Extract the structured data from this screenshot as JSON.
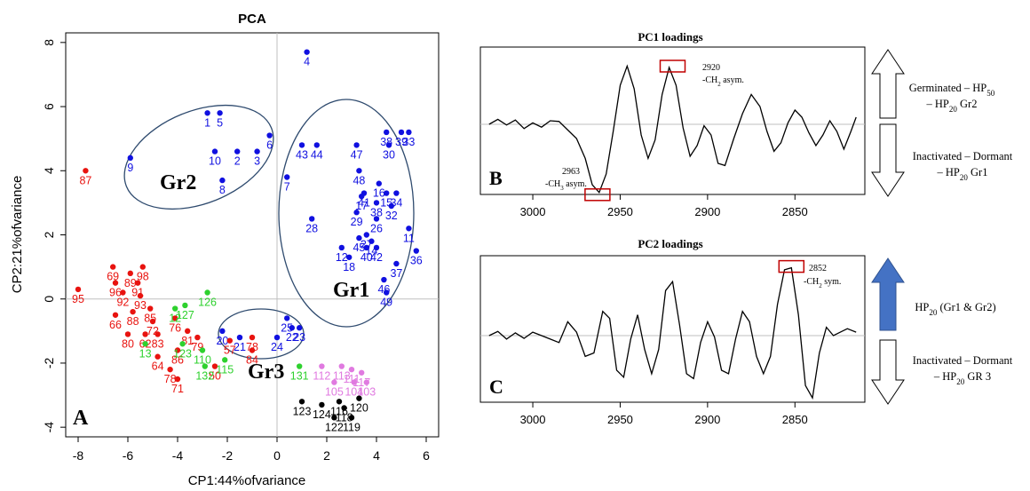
{
  "colors": {
    "red": "#e8130f",
    "blue": "#1010e0",
    "green": "#2ed12e",
    "pink": "#e07ae0",
    "black": "#000000",
    "ellipse": "#2e4a6e",
    "baseline": "#bfbfbf",
    "marker": "#c00000",
    "arrow_fill": "#4472c4"
  },
  "icons": {
    "up_filled": "arrow-up-filled-icon",
    "up_outline": "arrow-up-outline-icon",
    "down_outline": "arrow-down-outline-icon"
  },
  "pca": {
    "title": "PCA",
    "xlabel": "CP1:\u001544%\u0015of\u0015variance",
    "ylabel": "CP2:\u001521%\u0015of\u0015variance",
    "panel_letter": "A",
    "xticks": [
      "-8",
      "-6",
      "-4",
      "-2",
      "0",
      "2",
      "4",
      "6"
    ],
    "yticks": [
      "-4",
      "-2",
      "0",
      "2",
      "4",
      "6",
      "8"
    ],
    "groups": [
      "Gr1",
      "Gr2",
      "Gr3"
    ]
  },
  "pc1": {
    "title": "PC1 loadings",
    "panel_letter": "B",
    "xticks": [
      "3000",
      "2950",
      "2900",
      "2850"
    ],
    "ann1_wn": "2920",
    "ann1_lbl": "-CH",
    "ann1_sub": "2",
    "ann1_end": " asym.",
    "ann2_wn": "2963",
    "ann2_lbl": "-CH",
    "ann2_sub": "3",
    "ann2_end": " asym.",
    "top_line1": "Germinated – HP",
    "top_sub1": "50",
    "top_line2": "– HP",
    "top_sub2": "20",
    "top_end2": " Gr2",
    "bottom_line1": "Inactivated – Dormant",
    "bottom_line2": "– HP",
    "bottom_sub2": "20",
    "bottom_end2": " Gr1"
  },
  "pc2": {
    "title": "PC2 loadings",
    "panel_letter": "C",
    "xticks": [
      "3000",
      "2950",
      "2900",
      "2850"
    ],
    "ann1_wn": "2852",
    "ann1_lbl": "-CH",
    "ann1_sub": "2",
    "ann1_end": " sym.",
    "top_line1": "HP",
    "top_sub1": "20",
    "top_end1": " (Gr1 & Gr2)",
    "bottom_line1": "Inactivated – Dormant",
    "bottom_line2": "– HP",
    "bottom_sub2": "20",
    "bottom_end2": " GR 3"
  },
  "chart_data": [
    {
      "type": "scatter",
      "title": "PCA",
      "xlabel": "CP1:\u001544%\u0015of\u0015variance",
      "ylabel": "CP2:\u001521%\u0015of\u0015variance",
      "xlim": [
        -8.5,
        6.5
      ],
      "ylim": [
        -4.3,
        8.3
      ],
      "grid": false,
      "series": [
        {
          "color": "blue",
          "points": [
            {
              "x": 1.2,
              "y": 7.7,
              "label": "4"
            },
            {
              "x": -2.8,
              "y": 5.8,
              "label": "1"
            },
            {
              "x": -2.3,
              "y": 5.8,
              "label": "5"
            },
            {
              "x": -0.3,
              "y": 5.1,
              "label": "6"
            },
            {
              "x": -0.8,
              "y": 4.6,
              "label": "3"
            },
            {
              "x": -1.6,
              "y": 4.6,
              "label": "2"
            },
            {
              "x": -2.5,
              "y": 4.6,
              "label": "10"
            },
            {
              "x": -5.9,
              "y": 4.4,
              "label": "9"
            },
            {
              "x": -2.2,
              "y": 3.7,
              "label": "8"
            },
            {
              "x": 1.0,
              "y": 4.8,
              "label": "43"
            },
            {
              "x": 1.6,
              "y": 4.8,
              "label": "44"
            },
            {
              "x": 4.4,
              "y": 5.2,
              "label": "38"
            },
            {
              "x": 5.0,
              "y": 5.2,
              "label": "39"
            },
            {
              "x": 5.3,
              "y": 5.2,
              "label": "33"
            },
            {
              "x": 4.5,
              "y": 4.8,
              "label": "30"
            },
            {
              "x": 3.2,
              "y": 4.8,
              "label": "47"
            },
            {
              "x": 3.3,
              "y": 4.0,
              "label": "48"
            },
            {
              "x": 4.1,
              "y": 3.6,
              "label": "16"
            },
            {
              "x": 4.4,
              "y": 3.3,
              "label": "15"
            },
            {
              "x": 4.8,
              "y": 3.3,
              "label": "34"
            },
            {
              "x": 3.5,
              "y": 3.3,
              "label": "41"
            },
            {
              "x": 3.4,
              "y": 3.2,
              "label": "17"
            },
            {
              "x": 4.0,
              "y": 3.0,
              "label": "38"
            },
            {
              "x": 4.6,
              "y": 2.9,
              "label": "32"
            },
            {
              "x": 3.2,
              "y": 2.7,
              "label": "29"
            },
            {
              "x": 4.0,
              "y": 2.5,
              "label": "26"
            },
            {
              "x": 0.4,
              "y": 3.8,
              "label": "7"
            },
            {
              "x": 1.4,
              "y": 2.5,
              "label": "28"
            },
            {
              "x": 3.6,
              "y": 2.0,
              "label": "27"
            },
            {
              "x": 3.3,
              "y": 1.9,
              "label": "45"
            },
            {
              "x": 3.8,
              "y": 1.8,
              "label": "14"
            },
            {
              "x": 3.6,
              "y": 1.6,
              "label": "40"
            },
            {
              "x": 4.0,
              "y": 1.6,
              "label": "42"
            },
            {
              "x": 5.3,
              "y": 2.2,
              "label": "11"
            },
            {
              "x": 2.6,
              "y": 1.6,
              "label": "12"
            },
            {
              "x": 2.9,
              "y": 1.3,
              "label": "18"
            },
            {
              "x": 5.6,
              "y": 1.5,
              "label": "36"
            },
            {
              "x": 4.8,
              "y": 1.1,
              "label": "37"
            },
            {
              "x": 4.3,
              "y": 0.6,
              "label": "46"
            },
            {
              "x": 4.4,
              "y": 0.2,
              "label": "49"
            },
            {
              "x": 0.4,
              "y": -0.6,
              "label": "25"
            },
            {
              "x": 0.6,
              "y": -0.9,
              "label": "22"
            },
            {
              "x": 0.9,
              "y": -0.9,
              "label": "23"
            },
            {
              "x": 0.0,
              "y": -1.2,
              "label": "24"
            },
            {
              "x": -1.5,
              "y": -1.2,
              "label": "21"
            },
            {
              "x": -2.2,
              "y": -1.0,
              "label": "20"
            }
          ]
        },
        {
          "color": "red",
          "points": [
            {
              "x": -7.7,
              "y": 4.0,
              "label": "87"
            },
            {
              "x": -8.0,
              "y": 0.3,
              "label": "95"
            },
            {
              "x": -6.6,
              "y": 1.0,
              "label": "69"
            },
            {
              "x": -6.5,
              "y": 0.5,
              "label": "96"
            },
            {
              "x": -5.9,
              "y": 0.8,
              "label": "89"
            },
            {
              "x": -5.6,
              "y": 0.5,
              "label": "91"
            },
            {
              "x": -5.4,
              "y": 1.0,
              "label": "98"
            },
            {
              "x": -6.2,
              "y": 0.2,
              "label": "92"
            },
            {
              "x": -5.5,
              "y": 0.1,
              "label": "93"
            },
            {
              "x": -6.5,
              "y": -0.5,
              "label": "66"
            },
            {
              "x": -5.8,
              "y": -0.4,
              "label": "88"
            },
            {
              "x": -5.1,
              "y": -0.3,
              "label": "85"
            },
            {
              "x": -5.0,
              "y": -0.7,
              "label": "72"
            },
            {
              "x": -6.0,
              "y": -1.1,
              "label": "80"
            },
            {
              "x": -5.3,
              "y": -1.1,
              "label": "62"
            },
            {
              "x": -4.8,
              "y": -1.1,
              "label": "83"
            },
            {
              "x": -4.1,
              "y": -0.6,
              "label": "76"
            },
            {
              "x": -3.6,
              "y": -1.0,
              "label": "81"
            },
            {
              "x": -3.2,
              "y": -1.2,
              "label": "79"
            },
            {
              "x": -4.0,
              "y": -1.6,
              "label": "86"
            },
            {
              "x": -4.8,
              "y": -1.8,
              "label": "64"
            },
            {
              "x": -4.3,
              "y": -2.2,
              "label": "78"
            },
            {
              "x": -4.0,
              "y": -2.5,
              "label": "71"
            },
            {
              "x": -2.5,
              "y": -2.1,
              "label": "50"
            },
            {
              "x": -1.9,
              "y": -1.3,
              "label": "57"
            },
            {
              "x": -1.0,
              "y": -1.2,
              "label": "78"
            },
            {
              "x": -1.0,
              "y": -1.6,
              "label": "84"
            }
          ]
        },
        {
          "color": "green",
          "points": [
            {
              "x": -2.8,
              "y": 0.2,
              "label": "126"
            },
            {
              "x": -3.7,
              "y": -0.2,
              "label": "127"
            },
            {
              "x": -4.1,
              "y": -0.3,
              "label": "12"
            },
            {
              "x": -5.3,
              "y": -1.4,
              "label": "13"
            },
            {
              "x": -3.8,
              "y": -1.4,
              "label": "123"
            },
            {
              "x": -3.0,
              "y": -1.6,
              "label": "110"
            },
            {
              "x": -2.1,
              "y": -1.9,
              "label": "115"
            },
            {
              "x": -2.9,
              "y": -2.1,
              "label": "132"
            },
            {
              "x": 0.9,
              "y": -2.1,
              "label": "131"
            }
          ]
        },
        {
          "color": "pink",
          "points": [
            {
              "x": 1.8,
              "y": -2.1,
              "label": "112"
            },
            {
              "x": 2.6,
              "y": -2.1,
              "label": "113"
            },
            {
              "x": 3.0,
              "y": -2.2,
              "label": "111"
            },
            {
              "x": 3.4,
              "y": -2.3,
              "label": "117"
            },
            {
              "x": 2.3,
              "y": -2.6,
              "label": "105"
            },
            {
              "x": 3.1,
              "y": -2.6,
              "label": "104"
            },
            {
              "x": 3.6,
              "y": -2.6,
              "label": "103"
            }
          ]
        },
        {
          "color": "black",
          "points": [
            {
              "x": 1.0,
              "y": -3.2,
              "label": "123"
            },
            {
              "x": 1.8,
              "y": -3.3,
              "label": "124"
            },
            {
              "x": 2.5,
              "y": -3.2,
              "label": "116"
            },
            {
              "x": 3.3,
              "y": -3.1,
              "label": "120"
            },
            {
              "x": 2.3,
              "y": -3.7,
              "label": "122"
            },
            {
              "x": 3.0,
              "y": -3.7,
              "label": "119"
            },
            {
              "x": 2.7,
              "y": -3.4,
              "label": "118"
            }
          ]
        }
      ]
    },
    {
      "type": "line",
      "title": "PC1 loadings",
      "x_direction": "reversed",
      "xlim": [
        3030,
        2810
      ],
      "ylim": [
        -1.1,
        1.1
      ],
      "series": [
        {
          "x": [
            3025,
            3020,
            3015,
            3010,
            3005,
            3000,
            2995,
            2990,
            2985,
            2980,
            2975,
            2970,
            2966,
            2962,
            2958,
            2954,
            2950,
            2946,
            2942,
            2938,
            2934,
            2930,
            2926,
            2922,
            2918,
            2914,
            2910,
            2906,
            2902,
            2898,
            2894,
            2890,
            2885,
            2880,
            2875,
            2870,
            2866,
            2862,
            2858,
            2854,
            2850,
            2846,
            2842,
            2838,
            2834,
            2830,
            2826,
            2822,
            2818,
            2815
          ],
          "y": [
            0.0,
            0.07,
            -0.01,
            0.06,
            -0.06,
            0.02,
            -0.04,
            0.05,
            0.04,
            -0.08,
            -0.2,
            -0.48,
            -0.85,
            -0.96,
            -0.7,
            -0.1,
            0.55,
            0.82,
            0.5,
            -0.15,
            -0.48,
            -0.22,
            0.42,
            0.8,
            0.55,
            -0.05,
            -0.45,
            -0.3,
            -0.02,
            -0.15,
            -0.55,
            -0.58,
            -0.2,
            0.15,
            0.42,
            0.25,
            -0.1,
            -0.38,
            -0.26,
            0.02,
            0.2,
            0.1,
            -0.12,
            -0.3,
            -0.15,
            0.05,
            -0.1,
            -0.35,
            -0.1,
            0.1
          ]
        }
      ],
      "annotations": [
        {
          "x": 2920,
          "text": "2920 -CH2 asym."
        },
        {
          "x": 2963,
          "text": "2963 -CH3 asym."
        }
      ]
    },
    {
      "type": "line",
      "title": "PC2 loadings",
      "x_direction": "reversed",
      "xlim": [
        3030,
        2810
      ],
      "ylim": [
        -1.1,
        1.1
      ],
      "series": [
        {
          "x": [
            3025,
            3020,
            3015,
            3010,
            3005,
            3000,
            2995,
            2990,
            2985,
            2980,
            2975,
            2970,
            2965,
            2960,
            2956,
            2952,
            2948,
            2944,
            2940,
            2936,
            2932,
            2928,
            2924,
            2920,
            2916,
            2912,
            2908,
            2904,
            2900,
            2896,
            2892,
            2888,
            2884,
            2880,
            2876,
            2872,
            2868,
            2864,
            2860,
            2856,
            2852,
            2848,
            2844,
            2840,
            2836,
            2832,
            2828,
            2824,
            2820,
            2815
          ],
          "y": [
            0.0,
            0.06,
            -0.05,
            0.04,
            -0.04,
            0.05,
            0.0,
            -0.05,
            -0.1,
            0.2,
            0.05,
            -0.3,
            -0.25,
            0.35,
            0.25,
            -0.5,
            -0.6,
            -0.05,
            0.3,
            -0.2,
            -0.55,
            -0.2,
            0.65,
            0.78,
            0.15,
            -0.55,
            -0.62,
            -0.1,
            0.2,
            -0.02,
            -0.5,
            -0.55,
            -0.05,
            0.35,
            0.2,
            -0.3,
            -0.55,
            -0.3,
            0.45,
            0.95,
            0.98,
            0.3,
            -0.72,
            -0.9,
            -0.25,
            0.12,
            0.0,
            0.05,
            0.1,
            0.05
          ]
        }
      ],
      "annotations": [
        {
          "x": 2852,
          "text": "2852 -CH2 sym."
        }
      ]
    }
  ]
}
